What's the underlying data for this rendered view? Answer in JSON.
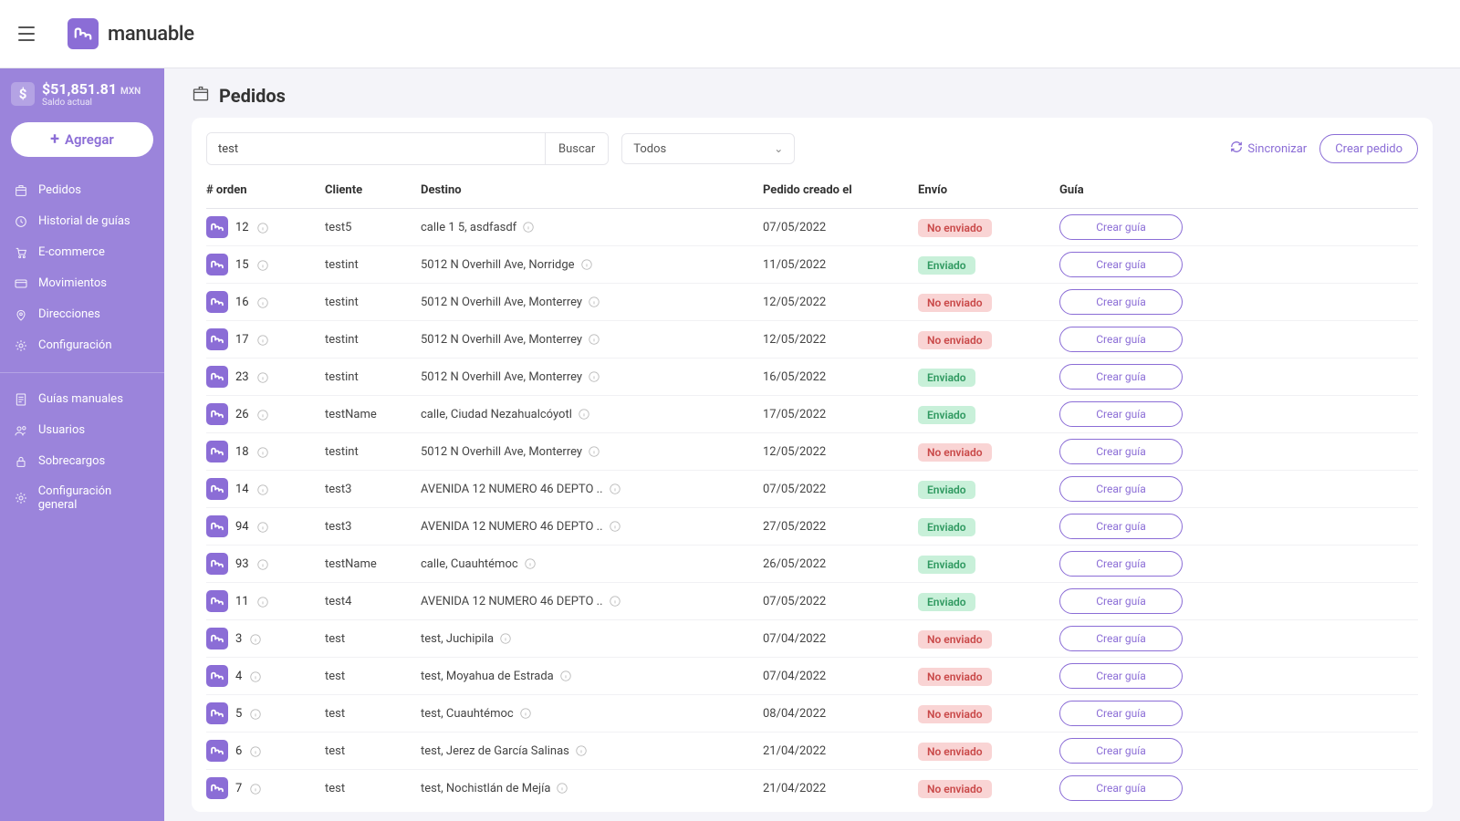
{
  "brand": {
    "name": "manuable"
  },
  "balance": {
    "amount": "$51,851.81",
    "currency": "MXN",
    "subtitle": "Saldo actual"
  },
  "sidebar": {
    "agregar_label": "Agregar",
    "group1": [
      {
        "label": "Pedidos",
        "icon": "box"
      },
      {
        "label": "Historial de guías",
        "icon": "clock"
      },
      {
        "label": "E-commerce",
        "icon": "cart"
      },
      {
        "label": "Movimientos",
        "icon": "card"
      },
      {
        "label": "Direcciones",
        "icon": "pin"
      },
      {
        "label": "Configuración",
        "icon": "gear"
      }
    ],
    "group2": [
      {
        "label": "Guías manuales",
        "icon": "doc"
      },
      {
        "label": "Usuarios",
        "icon": "users"
      },
      {
        "label": "Sobrecargos",
        "icon": "lock"
      },
      {
        "label": "Configuración general",
        "icon": "gear"
      }
    ]
  },
  "page": {
    "title": "Pedidos"
  },
  "toolbar": {
    "search_value": "test",
    "search_button": "Buscar",
    "filter_selected": "Todos",
    "sync_label": "Sincronizar",
    "create_order_label": "Crear pedido"
  },
  "table": {
    "columns": [
      "# orden",
      "Cliente",
      "Destino",
      "Pedido creado el",
      "Envío",
      "Guía"
    ],
    "guia_button_label": "Crear guía",
    "status_labels": {
      "sent": "Enviado",
      "not_sent": "No enviado"
    },
    "rows": [
      {
        "order": "12",
        "cliente": "test5",
        "destino": "calle 1 5, asdfasdf",
        "fecha": "07/05/2022",
        "status": "not_sent"
      },
      {
        "order": "15",
        "cliente": "testint",
        "destino": "5012 N Overhill Ave, Norridge",
        "fecha": "11/05/2022",
        "status": "sent"
      },
      {
        "order": "16",
        "cliente": "testint",
        "destino": "5012 N Overhill Ave, Monterrey",
        "fecha": "12/05/2022",
        "status": "not_sent"
      },
      {
        "order": "17",
        "cliente": "testint",
        "destino": "5012 N Overhill Ave, Monterrey",
        "fecha": "12/05/2022",
        "status": "not_sent"
      },
      {
        "order": "23",
        "cliente": "testint",
        "destino": "5012 N Overhill Ave, Monterrey",
        "fecha": "16/05/2022",
        "status": "sent"
      },
      {
        "order": "26",
        "cliente": "testName",
        "destino": "calle, Ciudad Nezahualcóyotl",
        "fecha": "17/05/2022",
        "status": "sent"
      },
      {
        "order": "18",
        "cliente": "testint",
        "destino": "5012 N Overhill Ave, Monterrey",
        "fecha": "12/05/2022",
        "status": "not_sent"
      },
      {
        "order": "14",
        "cliente": "test3",
        "destino": "AVENIDA 12 NUMERO 46 DEPTO ..",
        "fecha": "07/05/2022",
        "status": "sent"
      },
      {
        "order": "94",
        "cliente": "test3",
        "destino": "AVENIDA 12 NUMERO 46 DEPTO ..",
        "fecha": "27/05/2022",
        "status": "sent"
      },
      {
        "order": "93",
        "cliente": "testName",
        "destino": "calle, Cuauhtémoc",
        "fecha": "26/05/2022",
        "status": "sent"
      },
      {
        "order": "11",
        "cliente": "test4",
        "destino": "AVENIDA 12 NUMERO 46 DEPTO ..",
        "fecha": "07/05/2022",
        "status": "sent"
      },
      {
        "order": "3",
        "cliente": "test",
        "destino": "test, Juchipila",
        "fecha": "07/04/2022",
        "status": "not_sent"
      },
      {
        "order": "4",
        "cliente": "test",
        "destino": "test, Moyahua de Estrada",
        "fecha": "07/04/2022",
        "status": "not_sent"
      },
      {
        "order": "5",
        "cliente": "test",
        "destino": "test, Cuauhtémoc",
        "fecha": "08/04/2022",
        "status": "not_sent"
      },
      {
        "order": "6",
        "cliente": "test",
        "destino": "test, Jerez de García Salinas",
        "fecha": "21/04/2022",
        "status": "not_sent"
      },
      {
        "order": "7",
        "cliente": "test",
        "destino": "test, Nochistlán de Mejía",
        "fecha": "21/04/2022",
        "status": "not_sent"
      }
    ]
  }
}
